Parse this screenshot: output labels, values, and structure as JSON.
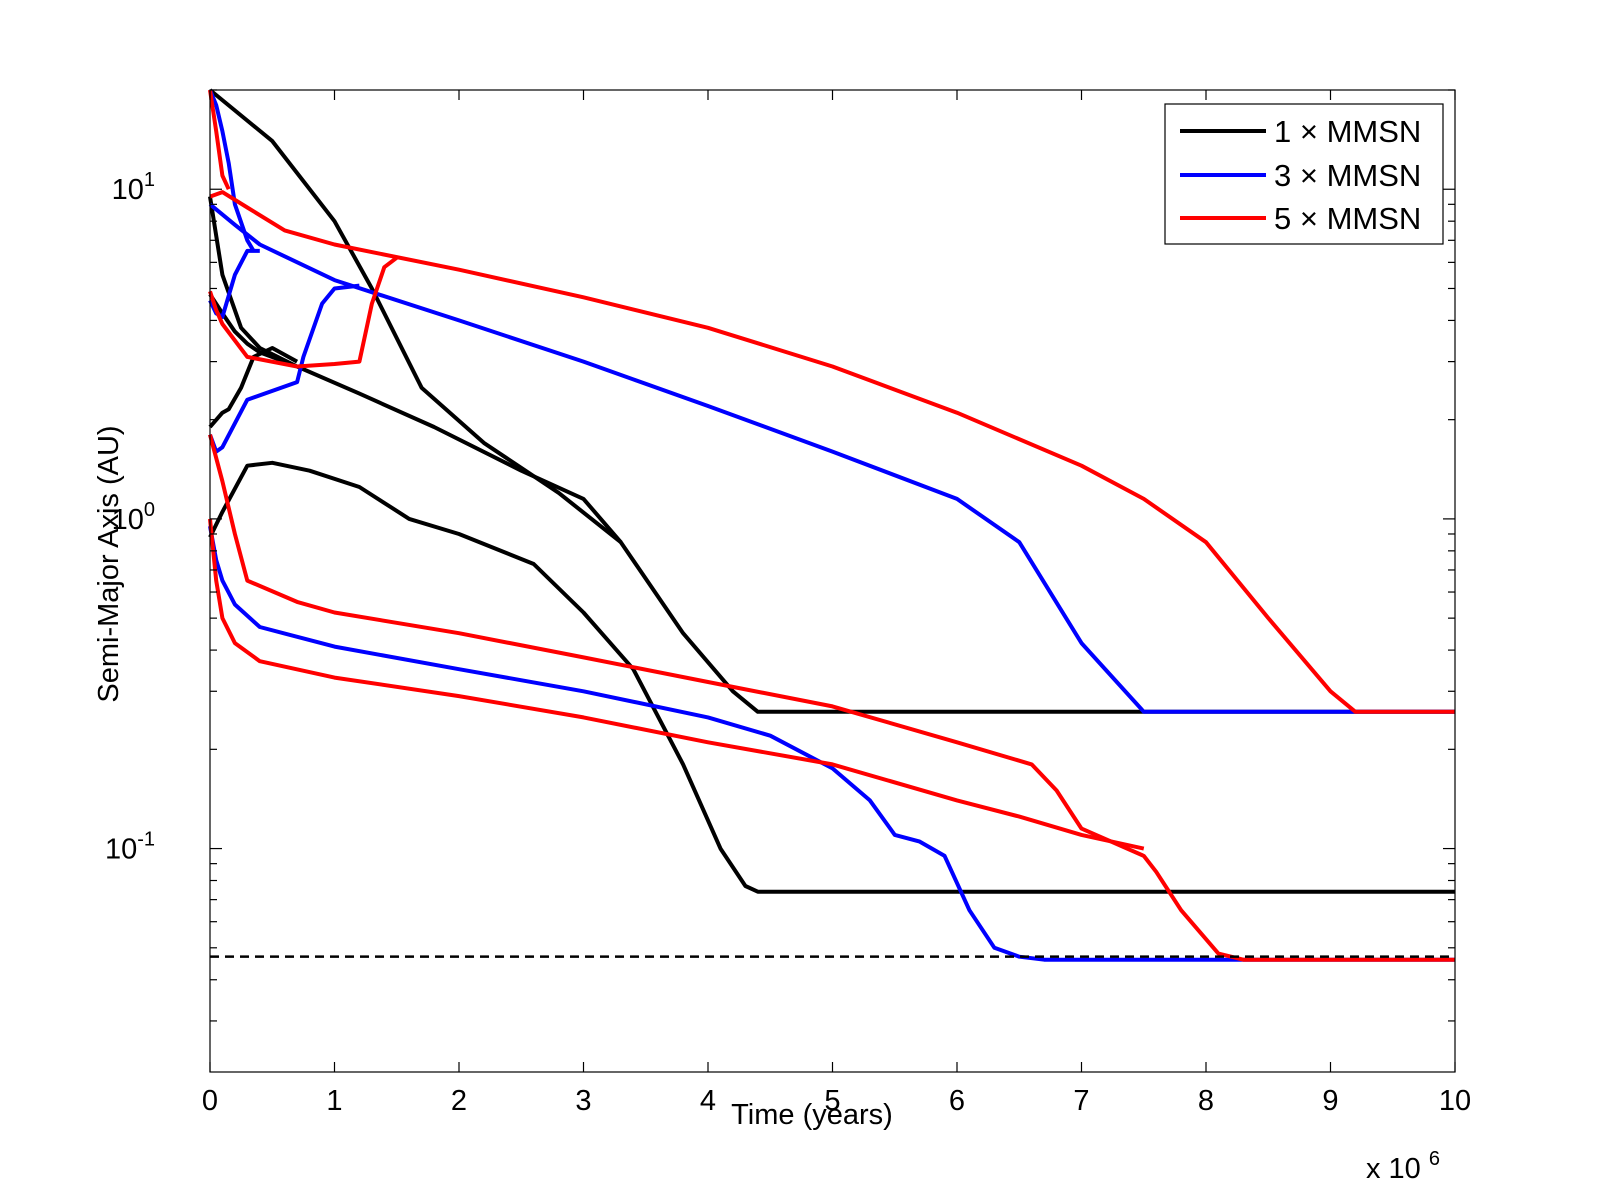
{
  "chart_data": {
    "type": "line",
    "xlabel": "Time (years)",
    "ylabel": "Semi-Major Axis (AU)",
    "x_multiplier_label": {
      "base": "x 10",
      "exp": "6"
    },
    "xlim": [
      0,
      10
    ],
    "ylim": [
      0.021,
      20
    ],
    "yscale": "log",
    "grid": false,
    "x_ticks": [
      "0",
      "1",
      "2",
      "3",
      "4",
      "5",
      "6",
      "7",
      "8",
      "9",
      "10"
    ],
    "y_ticks": [
      {
        "value": 0.1,
        "base": "10",
        "exp": "-1"
      },
      {
        "value": 1,
        "base": "10",
        "exp": "0"
      },
      {
        "value": 10,
        "base": "10",
        "exp": "1"
      }
    ],
    "legend": {
      "position": "top-right",
      "entries": [
        {
          "label": "1 × MMSN",
          "color": "#000000"
        },
        {
          "label": "3 × MMSN",
          "color": "#0000ff"
        },
        {
          "label": "5 × MMSN",
          "color": "#ff0000"
        }
      ]
    },
    "reference_line": {
      "name": "dashed-line",
      "y": 0.047,
      "color": "#000000",
      "style": "dashed"
    },
    "series": [
      {
        "name": "1 × MMSN",
        "color": "#000000",
        "x": [
          0,
          0.5,
          1,
          1.3,
          1.7,
          2.2,
          2.8,
          3.3,
          3.8,
          4.2,
          4.4,
          10
        ],
        "y": [
          20,
          14,
          8,
          5,
          2.5,
          1.7,
          1.2,
          0.85,
          0.45,
          0.3,
          0.26,
          0.26
        ]
      },
      {
        "name": "1 × MMSN",
        "color": "#000000",
        "x": [
          0,
          0.1,
          0.25,
          0.4,
          0.7,
          1.2,
          1.8,
          2.5,
          3,
          3.3
        ],
        "y": [
          9.5,
          5.5,
          3.8,
          3.3,
          2.9,
          2.4,
          1.9,
          1.4,
          1.15,
          0.85
        ]
      },
      {
        "name": "1 × MMSN",
        "color": "#000000",
        "x": [
          0,
          0.1,
          0.2,
          0.3,
          0.4,
          0.6
        ],
        "y": [
          4.8,
          4.2,
          3.7,
          3.4,
          3.2,
          3.0
        ]
      },
      {
        "name": "1 × MMSN",
        "color": "#000000",
        "x": [
          0,
          0.1,
          0.15,
          0.25,
          0.35,
          0.5,
          0.7
        ],
        "y": [
          1.9,
          2.1,
          2.15,
          2.5,
          3.1,
          3.3,
          3.0
        ]
      },
      {
        "name": "1 × MMSN",
        "color": "#000000",
        "x": [
          0,
          0.1,
          0.3,
          0.5,
          0.8,
          1.2,
          1.6,
          2.0,
          2.6,
          3.0,
          3.4,
          3.8,
          4.1,
          4.3,
          4.4,
          10
        ],
        "y": [
          0.88,
          1.05,
          1.45,
          1.48,
          1.4,
          1.25,
          1.0,
          0.9,
          0.73,
          0.52,
          0.35,
          0.18,
          0.1,
          0.077,
          0.074,
          0.074
        ]
      },
      {
        "name": "3 × MMSN",
        "color": "#0000ff",
        "x": [
          0,
          0.05,
          0.1,
          0.15,
          0.2,
          0.3,
          0.35
        ],
        "y": [
          20,
          18,
          15,
          12,
          9,
          7,
          6.5
        ]
      },
      {
        "name": "3 × MMSN",
        "color": "#0000ff",
        "x": [
          0,
          0.2,
          0.4,
          1,
          2,
          3,
          4,
          5,
          6,
          6.5,
          7,
          7.5,
          10
        ],
        "y": [
          9,
          7.8,
          6.8,
          5.3,
          4.0,
          3.0,
          2.2,
          1.6,
          1.15,
          0.85,
          0.42,
          0.26,
          0.26
        ]
      },
      {
        "name": "3 × MMSN",
        "color": "#0000ff",
        "x": [
          0,
          0.05,
          0.1,
          0.2,
          0.3,
          0.4
        ],
        "y": [
          4.6,
          4.2,
          4.1,
          5.5,
          6.5,
          6.5
        ]
      },
      {
        "name": "3 × MMSN",
        "color": "#0000ff",
        "x": [
          0,
          0.05,
          0.1,
          0.2,
          0.3,
          0.7,
          0.75,
          0.9,
          1.0,
          1.2
        ],
        "y": [
          1.8,
          1.6,
          1.65,
          1.95,
          2.3,
          2.6,
          3.1,
          4.5,
          5.0,
          5.1
        ]
      },
      {
        "name": "3 × MMSN",
        "color": "#0000ff",
        "x": [
          0,
          0.05,
          0.1,
          0.2,
          0.4,
          1,
          2,
          3,
          4,
          4.5,
          5,
          5.3,
          5.5,
          5.7,
          5.9,
          6.1,
          6.3,
          6.5,
          6.7,
          10
        ],
        "y": [
          0.95,
          0.75,
          0.65,
          0.55,
          0.47,
          0.41,
          0.35,
          0.3,
          0.25,
          0.22,
          0.175,
          0.14,
          0.11,
          0.105,
          0.095,
          0.065,
          0.05,
          0.047,
          0.046,
          0.046
        ]
      },
      {
        "name": "5 × MMSN",
        "color": "#ff0000",
        "x": [
          0,
          0.05,
          0.1,
          0.15
        ],
        "y": [
          20,
          15,
          11,
          10
        ]
      },
      {
        "name": "5 × MMSN",
        "color": "#ff0000",
        "x": [
          0,
          0.1,
          0.3,
          0.6,
          1,
          2,
          3,
          4,
          5,
          6,
          7,
          7.5,
          8,
          8.5,
          9,
          9.2,
          10
        ],
        "y": [
          9.5,
          9.8,
          8.8,
          7.5,
          6.8,
          5.7,
          4.7,
          3.8,
          2.9,
          2.1,
          1.45,
          1.15,
          0.85,
          0.5,
          0.3,
          0.26,
          0.26
        ]
      },
      {
        "name": "5 × MMSN",
        "color": "#ff0000",
        "x": [
          0,
          0.05,
          0.1,
          0.3,
          0.7,
          1.0,
          1.2,
          1.3,
          1.4,
          1.5
        ],
        "y": [
          4.9,
          4.3,
          3.9,
          3.1,
          2.9,
          2.95,
          3.0,
          4.5,
          5.8,
          6.2
        ]
      },
      {
        "name": "5 × MMSN",
        "color": "#ff0000",
        "x": [
          0,
          0.1,
          0.2,
          0.3,
          0.7,
          1,
          2,
          3,
          4,
          5,
          6,
          6.6,
          6.8,
          7.0,
          7.5,
          7.6,
          7.8,
          8.1,
          8.3,
          10
        ],
        "y": [
          1.8,
          1.3,
          0.9,
          0.65,
          0.56,
          0.52,
          0.45,
          0.38,
          0.32,
          0.27,
          0.21,
          0.18,
          0.15,
          0.115,
          0.095,
          0.085,
          0.065,
          0.048,
          0.046,
          0.046
        ]
      },
      {
        "name": "5 × MMSN",
        "color": "#ff0000",
        "x": [
          0,
          0.05,
          0.1,
          0.2,
          0.4,
          1,
          2,
          3,
          4,
          5,
          6,
          6.5,
          7,
          7.5
        ],
        "y": [
          1.0,
          0.65,
          0.5,
          0.42,
          0.37,
          0.33,
          0.29,
          0.25,
          0.21,
          0.18,
          0.14,
          0.125,
          0.11,
          0.1
        ]
      }
    ]
  }
}
